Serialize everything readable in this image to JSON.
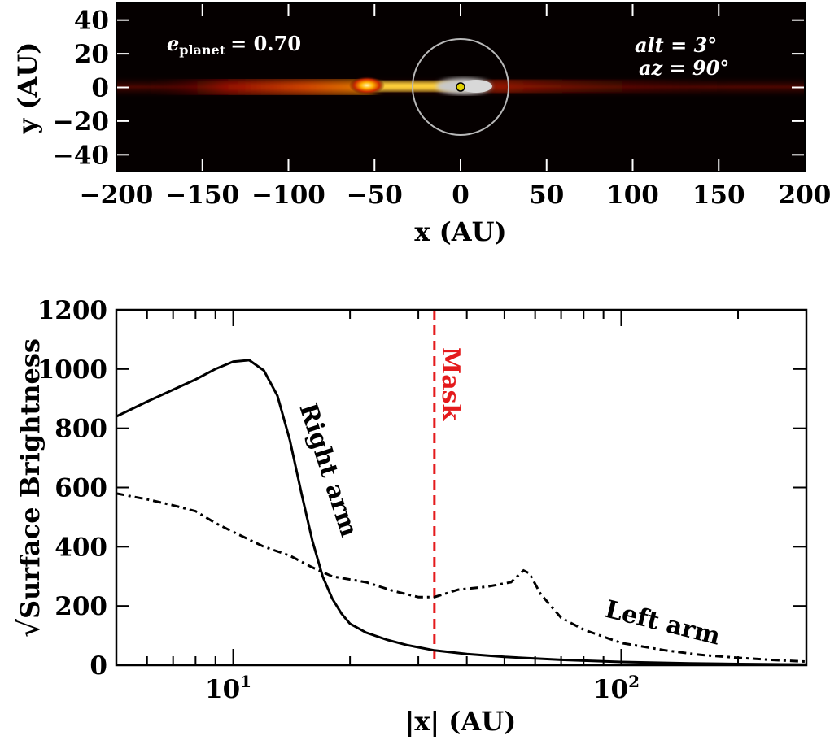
{
  "chart_data": [
    {
      "type": "heatmap",
      "title": "",
      "xlabel": "x (AU)",
      "ylabel": "y (AU)",
      "xlim": [
        -200,
        200
      ],
      "ylim": [
        -50,
        50
      ],
      "xticks": [
        -200,
        -150,
        -100,
        -50,
        0,
        50,
        100,
        150,
        200
      ],
      "xtick_labels": [
        "−200",
        "−150",
        "−100",
        "−50",
        "0",
        "50",
        "100",
        "150",
        "200"
      ],
      "yticks": [
        -40,
        -20,
        0,
        20,
        40
      ],
      "ytick_labels": [
        "−40",
        "−20",
        "0",
        "20",
        "40"
      ],
      "colormap": [
        "#000000",
        "#3a0000",
        "#8b0000",
        "#d83000",
        "#ff9a00",
        "#ffe060",
        "#c8c8c8"
      ],
      "annotations": {
        "eccentricity_symbol": "e",
        "eccentricity_subscript": "planet",
        "eccentricity_value": "= 0.70",
        "altitude": "alt = 3°",
        "azimuth": "az = 90°"
      },
      "mask_radius_au": 28,
      "star_position": [
        0,
        0
      ],
      "brightness_features": [
        {
          "name": "left lobe",
          "x": -55,
          "y": 1
        },
        {
          "name": "inner disk",
          "x": 8,
          "y": 1
        }
      ]
    },
    {
      "type": "line",
      "title": "",
      "xlabel": "|x| (AU)",
      "ylabel": "√Surface Brightness",
      "ylabel_radical": "√",
      "ylabel_text": "Surface Brightness",
      "xscale": "log",
      "xlim": [
        5,
        300
      ],
      "ylim": [
        0,
        1200
      ],
      "yticks": [
        0,
        200,
        400,
        600,
        800,
        1000,
        1200
      ],
      "ytick_labels": [
        "0",
        "200",
        "400",
        "600",
        "800",
        "1000",
        "1200"
      ],
      "xticks_major": [
        10,
        100
      ],
      "xtick_label_base": "10",
      "xtick_label_exps": [
        "1",
        "2"
      ],
      "mask": {
        "x": 33,
        "label": "Mask",
        "color": "#e41a1c"
      },
      "series": [
        {
          "name": "Right arm",
          "style": "solid",
          "x": [
            5,
            6,
            7,
            8,
            9,
            10,
            11,
            12,
            13,
            14,
            15,
            16,
            17,
            18,
            19,
            20,
            22,
            25,
            28,
            33,
            40,
            50,
            70,
            100,
            150,
            200,
            300
          ],
          "y": [
            840,
            890,
            930,
            965,
            1000,
            1025,
            1030,
            995,
            910,
            760,
            580,
            420,
            300,
            225,
            175,
            140,
            110,
            85,
            68,
            50,
            38,
            28,
            18,
            11,
            6,
            4,
            2
          ]
        },
        {
          "name": "Left arm",
          "style": "dashdot",
          "x": [
            5,
            6,
            7,
            8,
            9,
            10,
            12,
            14,
            16,
            18,
            22,
            26,
            30,
            33,
            38,
            45,
            52,
            56,
            58,
            62,
            70,
            80,
            100,
            130,
            160,
            200,
            250,
            300
          ],
          "y": [
            580,
            560,
            540,
            520,
            480,
            450,
            400,
            370,
            330,
            300,
            280,
            250,
            230,
            230,
            255,
            265,
            280,
            320,
            310,
            240,
            160,
            120,
            75,
            50,
            35,
            25,
            17,
            12
          ]
        }
      ]
    }
  ]
}
